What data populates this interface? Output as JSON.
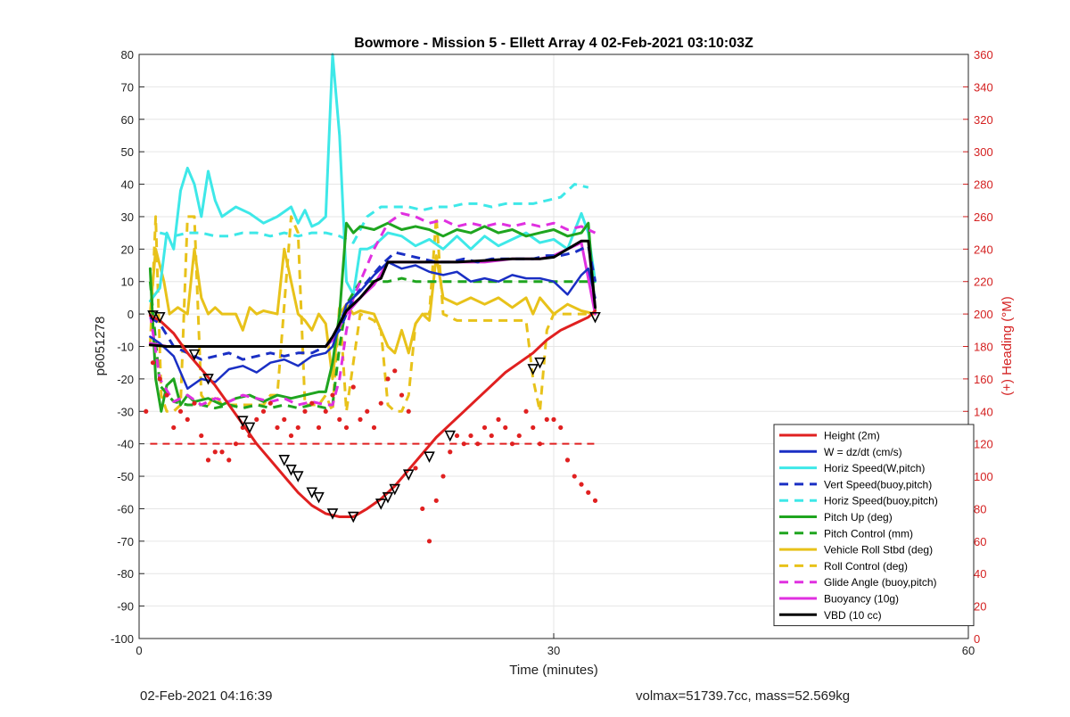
{
  "chart_data": {
    "type": "line",
    "title": "Bowmore - Mission 5 - Ellett Array 4 02-Feb-2021 03:10:03Z",
    "xlabel": "Time (minutes)",
    "ylabel": "p6051278",
    "y2label": "(+) Heading (°M)",
    "xlim": [
      0,
      60
    ],
    "ylim": [
      -100,
      80
    ],
    "y2lim": [
      0,
      360
    ],
    "xticks": [
      0,
      30,
      60
    ],
    "yticks": [
      -100,
      -90,
      -80,
      -70,
      -60,
      -50,
      -40,
      -30,
      -20,
      -10,
      0,
      10,
      20,
      30,
      40,
      50,
      60,
      70,
      80
    ],
    "y2ticks": [
      0,
      20,
      40,
      60,
      80,
      100,
      120,
      140,
      160,
      180,
      200,
      220,
      240,
      260,
      280,
      300,
      320,
      340,
      360
    ],
    "grid": true,
    "legend_position": "bottom-right",
    "colors": {
      "red": "#e02020",
      "blue": "#1a2fc4",
      "cyan": "#3ee8e8",
      "green": "#1fa51f",
      "yellow": "#e8c21a",
      "magenta": "#e030e0",
      "black": "#000000",
      "right_axis": "#d42020"
    },
    "series": [
      {
        "name": "Height (2m)",
        "color": "#e02020",
        "dash": false,
        "width": 3,
        "x": [
          0.8,
          1.5,
          2.5,
          3.5,
          4.5,
          5.5,
          6.5,
          7.5,
          8.5,
          9.5,
          10.5,
          11.5,
          12.5,
          13.5,
          14.5,
          15.5,
          16.5,
          17.5,
          18.5,
          19.5,
          20.5,
          21.5,
          22.5,
          23.5,
          24.5,
          25.5,
          26.5,
          27.5,
          28.5,
          29.5,
          30.5,
          31.5,
          32.5,
          33.0
        ],
        "y": [
          -0.5,
          -2,
          -6,
          -12,
          -17,
          -22,
          -28,
          -34,
          -40,
          -45,
          -50,
          -55,
          -59,
          -61.5,
          -62.5,
          -62.5,
          -60,
          -57,
          -53,
          -48,
          -43,
          -38,
          -34,
          -30,
          -26,
          -22,
          -18,
          -15,
          -12,
          -8,
          -5,
          -3,
          -1,
          1
        ]
      },
      {
        "name": "W = dz/dt (cm/s)",
        "color": "#1a2fc4",
        "dash": false,
        "width": 2.5,
        "x": [
          0.8,
          1.5,
          2.5,
          3.5,
          4.5,
          5.5,
          6.5,
          7.5,
          8.5,
          9.5,
          10.5,
          11.5,
          12.5,
          13.5,
          14.0,
          15.0,
          16.0,
          17.0,
          18.0,
          19.0,
          20.0,
          21.0,
          22.0,
          23.0,
          24.0,
          25.0,
          26.0,
          27.0,
          28.0,
          29.0,
          30.0,
          31.0,
          32.0,
          32.5,
          33.0
        ],
        "y": [
          -7,
          -9,
          -13,
          -23,
          -20,
          -21,
          -17,
          -16,
          -18,
          -15,
          -14,
          -16,
          -13,
          -12,
          -10,
          3,
          7,
          12,
          16,
          14,
          15,
          13,
          12,
          13,
          10,
          11,
          10,
          12,
          11,
          11,
          10,
          6,
          12,
          14,
          5
        ]
      },
      {
        "name": "Horiz Speed(W,pitch)",
        "color": "#3ee8e8",
        "dash": false,
        "width": 3,
        "x": [
          0.8,
          1.5,
          2.0,
          2.5,
          3.0,
          3.5,
          4.0,
          4.5,
          5.0,
          5.5,
          6.0,
          7.0,
          8.0,
          9.0,
          10.0,
          11.0,
          11.5,
          12.0,
          12.5,
          13.0,
          13.5,
          14.0,
          14.5,
          15.0,
          15.5,
          16.0,
          16.5,
          17.0,
          18.0,
          19.0,
          20.0,
          21.0,
          22.0,
          23.0,
          24.0,
          25.0,
          26.0,
          27.0,
          28.0,
          29.0,
          30.0,
          31.0,
          32.0,
          32.5,
          33.0
        ],
        "y": [
          4,
          8,
          25,
          20,
          38,
          45,
          40,
          30,
          44,
          35,
          30,
          33,
          31,
          28,
          30,
          33,
          28,
          32,
          27,
          28,
          30,
          80,
          55,
          10,
          6,
          20,
          20,
          21,
          25,
          24,
          21,
          23,
          20,
          24,
          20,
          24,
          21,
          23,
          25,
          22,
          23,
          20,
          31,
          25,
          10
        ]
      },
      {
        "name": "Vert Speed(buoy,pitch)",
        "color": "#1a2fc4",
        "dash": true,
        "width": 3,
        "x": [
          0.8,
          1.5,
          2.5,
          3.5,
          4.5,
          5.5,
          6.5,
          7.5,
          8.5,
          9.5,
          10.5,
          11.5,
          12.5,
          13.5,
          14.5,
          15.5,
          16.5,
          17.5,
          18.5,
          19.5,
          20.5,
          21.5,
          22.5,
          23.5,
          24.5,
          25.5,
          26.5,
          27.5,
          28.5,
          29.5,
          30.5,
          31.5,
          32.5,
          33.0
        ],
        "y": [
          -1,
          -3,
          -10,
          -12,
          -14,
          -13,
          -12,
          -14,
          -13,
          -12,
          -13,
          -12,
          -12,
          -10,
          -5,
          5,
          10,
          15,
          19,
          18,
          17,
          16,
          16,
          17,
          16,
          17,
          17,
          17,
          17,
          18,
          18,
          19,
          21,
          10
        ]
      },
      {
        "name": "Horiz Speed(buoy,pitch)",
        "color": "#3ee8e8",
        "dash": true,
        "width": 3,
        "x": [
          1.5,
          2.5,
          3.5,
          4.5,
          5.5,
          6.5,
          7.5,
          8.5,
          9.5,
          10.5,
          11.5,
          12.5,
          13.5,
          14.5,
          15.5,
          16.5,
          17.5,
          18.5,
          19.5,
          20.5,
          21.5,
          22.5,
          23.5,
          24.5,
          25.5,
          26.5,
          27.5,
          28.5,
          29.5,
          30.5,
          31.5,
          32.5
        ],
        "y": [
          25,
          24,
          25,
          25,
          24,
          24,
          25,
          25,
          24,
          25,
          24,
          25,
          25,
          24,
          22,
          30,
          33,
          33,
          33,
          32,
          33,
          33,
          34,
          34,
          33,
          34,
          34,
          34,
          35,
          36,
          40,
          39
        ]
      },
      {
        "name": "Pitch Up (deg)",
        "color": "#1fa51f",
        "dash": false,
        "width": 3,
        "x": [
          0.8,
          1.2,
          1.6,
          2.0,
          2.5,
          3.0,
          3.5,
          4.0,
          5.0,
          6.0,
          7.0,
          8.0,
          9.0,
          10.0,
          11.0,
          12.0,
          13.0,
          13.5,
          14.0,
          14.5,
          15.0,
          15.5,
          16.0,
          17.0,
          18.0,
          19.0,
          20.0,
          21.0,
          22.0,
          23.0,
          24.0,
          25.0,
          26.0,
          27.0,
          28.0,
          29.0,
          30.0,
          31.0,
          32.0,
          32.5,
          33.0
        ],
        "y": [
          14,
          -20,
          -30,
          -22,
          -20,
          -28,
          -25,
          -27,
          -26,
          -28,
          -26,
          -25,
          -27,
          -25,
          -26,
          -25,
          -24,
          -24,
          -15,
          0,
          28,
          25,
          27,
          26,
          28,
          26,
          27,
          26,
          24,
          26,
          25,
          27,
          25,
          26,
          24,
          25,
          26,
          24,
          25,
          28,
          1
        ]
      },
      {
        "name": "Pitch Control (mm)",
        "color": "#1fa51f",
        "dash": true,
        "width": 3,
        "x": [
          0.8,
          1.5,
          2.5,
          3.5,
          4.5,
          5.5,
          6.5,
          7.5,
          8.5,
          9.5,
          10.5,
          11.5,
          12.5,
          13.5,
          14.0,
          14.5,
          15.0,
          16.0,
          17.0,
          18.0,
          19.0,
          20.0,
          21.0,
          22.0,
          23.0,
          24.0,
          25.0,
          26.0,
          27.0,
          28.0,
          29.0,
          30.0,
          31.0,
          32.0,
          33.0
        ],
        "y": [
          10,
          -22,
          -27,
          -28,
          -28,
          -29,
          -28,
          -29,
          -28,
          -29,
          -28,
          -29,
          -28,
          -29,
          -28,
          -10,
          3,
          10,
          10,
          10,
          11,
          10,
          10,
          10,
          10,
          10,
          10,
          10,
          10,
          10,
          10,
          10,
          10,
          10,
          10
        ]
      },
      {
        "name": "Vehicle Roll Stbd (deg)",
        "color": "#e8c21a",
        "dash": false,
        "width": 3,
        "x": [
          0.8,
          1.2,
          1.8,
          2.2,
          2.8,
          3.5,
          4.0,
          4.5,
          5.0,
          5.5,
          6.0,
          7.0,
          7.5,
          8.0,
          8.5,
          9.0,
          10.0,
          10.5,
          11.0,
          11.5,
          12.0,
          12.5,
          13.0,
          13.5,
          14.0,
          14.5,
          15.0,
          15.5,
          16.0,
          17.0,
          17.5,
          18.0,
          18.5,
          19.0,
          19.5,
          20.0,
          20.5,
          21.0,
          21.5,
          22.0,
          23.0,
          24.0,
          25.0,
          26.0,
          27.0,
          28.0,
          28.5,
          29.0,
          30.0,
          31.0,
          32.0,
          33.0
        ],
        "y": [
          0,
          20,
          10,
          0,
          2,
          0,
          20,
          5,
          0,
          2,
          0,
          0,
          -5,
          2,
          0,
          1,
          0,
          20,
          10,
          0,
          -2,
          -5,
          0,
          -3,
          -20,
          0,
          3,
          0,
          1,
          0,
          -5,
          -10,
          -12,
          -5,
          -12,
          -3,
          0,
          -2,
          18,
          5,
          3,
          5,
          3,
          5,
          2,
          5,
          0,
          5,
          0,
          3,
          1,
          0
        ]
      },
      {
        "name": "Roll Control (deg)",
        "color": "#e8c21a",
        "dash": true,
        "width": 3,
        "x": [
          0.8,
          1.2,
          1.6,
          2.0,
          2.5,
          3.0,
          3.5,
          4.0,
          4.5,
          5.0,
          5.5,
          6.0,
          7.0,
          8.0,
          8.5,
          9.0,
          9.5,
          10.0,
          11.0,
          11.5,
          12.0,
          12.5,
          13.0,
          13.5,
          14.0,
          14.5,
          15.0,
          16.0,
          17.0,
          17.5,
          18.0,
          18.5,
          19.0,
          19.5,
          20.0,
          20.5,
          21.0,
          21.5,
          22.0,
          23.0,
          24.0,
          25.0,
          26.0,
          27.0,
          28.0,
          28.5,
          29.0,
          29.5,
          30.0,
          31.0,
          32.0,
          33.0
        ],
        "y": [
          -10,
          30,
          -25,
          -30,
          -30,
          -28,
          30,
          30,
          -25,
          -28,
          -25,
          -28,
          -28,
          -28,
          -28,
          -28,
          -25,
          -25,
          30,
          25,
          -28,
          -28,
          -28,
          -25,
          -30,
          3,
          -30,
          0,
          -2,
          -5,
          -28,
          -30,
          -30,
          -25,
          -3,
          0,
          0,
          30,
          0,
          -2,
          -2,
          -2,
          -2,
          -2,
          -2,
          -20,
          -30,
          -5,
          0,
          0,
          0,
          0
        ]
      },
      {
        "name": "Glide Angle (buoy,pitch)",
        "color": "#e030e0",
        "dash": true,
        "width": 3,
        "x": [
          0.8,
          1.5,
          2.5,
          3.5,
          4.5,
          5.5,
          6.5,
          7.5,
          8.5,
          9.5,
          10.5,
          11.5,
          12.5,
          13.5,
          14.0,
          14.5,
          15.0,
          15.5,
          16.0,
          17.0,
          18.0,
          19.0,
          20.0,
          21.0,
          22.0,
          23.0,
          24.0,
          25.0,
          26.0,
          27.0,
          28.0,
          29.0,
          30.0,
          31.0,
          32.0,
          33.0
        ],
        "y": [
          0,
          -20,
          -27,
          -25,
          -28,
          -26,
          -27,
          -25,
          -26,
          -27,
          -26,
          -28,
          -27,
          -28,
          -28,
          -20,
          -5,
          5,
          10,
          20,
          28,
          31,
          30,
          28,
          29,
          27,
          28,
          27,
          28,
          27,
          28,
          27,
          28,
          26,
          27,
          25
        ]
      },
      {
        "name": "Buoyancy (10g)",
        "color": "#e030e0",
        "dash": false,
        "width": 3,
        "x": [
          0.8,
          2.0,
          4.0,
          6.0,
          8.0,
          10.0,
          12.0,
          13.5,
          14.0,
          15.0,
          16.0,
          17.0,
          18.0,
          19.0,
          21.0,
          23.0,
          25.0,
          27.0,
          29.0,
          30.0,
          31.0,
          32.0,
          33.0
        ],
        "y": [
          -9,
          -10,
          -10,
          -10,
          -10,
          -10,
          -10,
          -10,
          -8,
          0,
          5,
          9,
          16,
          16,
          16,
          16,
          16,
          17,
          17,
          18,
          20,
          22,
          0
        ]
      },
      {
        "name": "VBD (10 cc)",
        "color": "#000000",
        "dash": false,
        "width": 3,
        "x": [
          0.8,
          2.0,
          4.0,
          6.0,
          8.0,
          10.0,
          12.0,
          13.5,
          14.0,
          15.0,
          16.0,
          17.0,
          17.5,
          18.0,
          19.0,
          21.0,
          23.0,
          25.0,
          27.0,
          29.0,
          30.0,
          31.0,
          32.0,
          32.5,
          33.0
        ],
        "y": [
          -9.5,
          -10,
          -10,
          -10,
          -10,
          -10,
          -10,
          -10,
          -7,
          1,
          5,
          10,
          11,
          16,
          16,
          16,
          16,
          16.5,
          17,
          17,
          17.5,
          20,
          22.5,
          22.5,
          2
        ]
      }
    ],
    "heading_reference": {
      "y2": 120,
      "x_start": 0.8,
      "x_end": 33.0,
      "color": "#e02020",
      "dash": true
    },
    "heading_points": {
      "color": "#e02020",
      "x": [
        0.5,
        1.0,
        1.5,
        2.0,
        2.5,
        3.0,
        3.5,
        4.0,
        4.5,
        5.0,
        5.5,
        6.0,
        6.5,
        7.0,
        7.5,
        8.0,
        8.5,
        9.0,
        9.5,
        10.0,
        10.5,
        11.0,
        11.5,
        12.0,
        12.5,
        13.0,
        13.5,
        14.0,
        14.5,
        15.0,
        15.5,
        16.0,
        16.5,
        17.0,
        17.5,
        18.0,
        18.5,
        19.0,
        19.5,
        20.0,
        20.5,
        21.0,
        21.5,
        22.0,
        22.5,
        23.0,
        23.5,
        24.0,
        24.5,
        25.0,
        25.5,
        26.0,
        26.5,
        27.0,
        27.5,
        28.0,
        28.5,
        29.0,
        29.5,
        30.0,
        30.5,
        31.0,
        31.5,
        32.0,
        32.5,
        33.0
      ],
      "y2": [
        140,
        170,
        160,
        150,
        130,
        140,
        135,
        145,
        125,
        110,
        115,
        115,
        110,
        120,
        130,
        125,
        135,
        140,
        145,
        130,
        135,
        125,
        130,
        140,
        145,
        130,
        140,
        150,
        135,
        130,
        155,
        135,
        140,
        130,
        145,
        160,
        165,
        150,
        140,
        105,
        80,
        60,
        85,
        100,
        115,
        125,
        120,
        125,
        120,
        130,
        125,
        135,
        130,
        120,
        125,
        140,
        130,
        120,
        135,
        135,
        130,
        110,
        100,
        95,
        90,
        85
      ]
    },
    "direction_markers": {
      "x": [
        1.0,
        1.5,
        4.0,
        5.0,
        7.5,
        8.0,
        10.5,
        11.0,
        11.5,
        12.5,
        13.0,
        14.0,
        15.5,
        17.5,
        18.0,
        18.5,
        19.5,
        21.0,
        22.5,
        28.5,
        29.0,
        33.0
      ],
      "y": [
        -0.5,
        -1,
        -12.5,
        -20,
        -33,
        -35,
        -45,
        -48,
        -50,
        -55,
        -56.5,
        -61.5,
        -62.5,
        -58.5,
        -56.5,
        -54,
        -49.5,
        -44,
        -37.5,
        -17,
        -15,
        -1
      ]
    }
  },
  "footer": {
    "left": "02-Feb-2021 04:16:39",
    "right": "volmax=51739.7cc, mass=52.569kg"
  }
}
